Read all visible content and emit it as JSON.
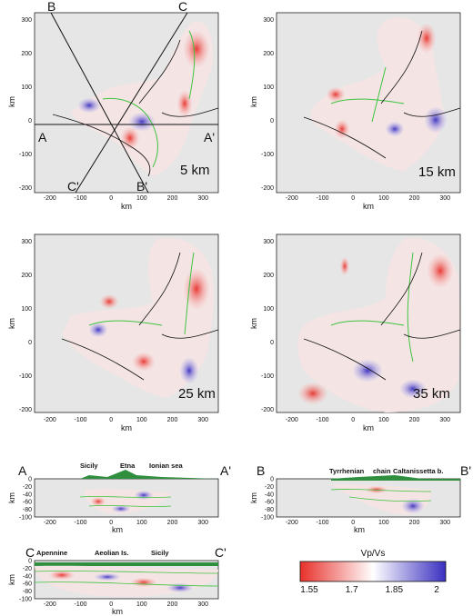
{
  "maps": [
    {
      "depth": "5 km"
    },
    {
      "depth": "15 km"
    },
    {
      "depth": "25 km"
    },
    {
      "depth": "35 km"
    }
  ],
  "map_axes": {
    "x_ticks": [
      "-200",
      "-100",
      "0",
      "100",
      "200",
      "300"
    ],
    "y_ticks": [
      "300",
      "200",
      "100",
      "0",
      "-100",
      "-200"
    ],
    "x_label": "km",
    "y_label": "km"
  },
  "profile_letters": {
    "A": "A",
    "A_prime": "A'",
    "B": "B",
    "B_prime": "B'",
    "C": "C",
    "C_prime": "C'"
  },
  "sections": [
    {
      "start": "A",
      "end": "A'",
      "labels": [
        "Sicily",
        "Etna",
        "Ionian sea"
      ]
    },
    {
      "start": "B",
      "end": "B'",
      "labels": [
        "Tyrrhenian",
        "chain",
        "Caltanissetta b."
      ]
    },
    {
      "start": "C",
      "end": "C'",
      "labels": [
        "Apennine",
        "Aeolian Is.",
        "Sicily"
      ]
    }
  ],
  "section_axes": {
    "y_ticks": [
      "0",
      "-20",
      "-40",
      "-60",
      "-80",
      "-100"
    ],
    "x_ticks": [
      "-200",
      "-100",
      "0",
      "100",
      "200",
      "300"
    ],
    "x_label": "km",
    "y_label": "km"
  },
  "colorbar": {
    "title": "Vp/Vs",
    "ticks": [
      "1.55",
      "1.7",
      "1.85",
      "2"
    ],
    "colors": {
      "low": "#e8302a",
      "mid": "#ffffff",
      "high": "#3a2fc0"
    }
  }
}
